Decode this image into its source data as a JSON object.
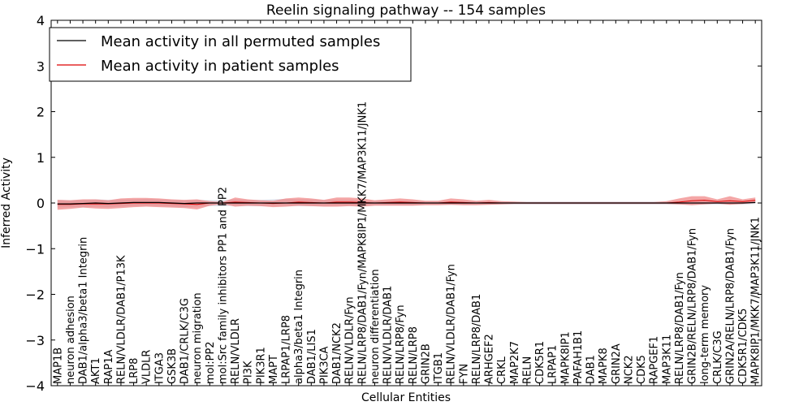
{
  "chart_data": {
    "type": "line",
    "title": "Reelin signaling pathway -- 154 samples",
    "xlabel": "Cellular Entities",
    "ylabel": "Inferred Activity",
    "ylim": [
      -4,
      4
    ],
    "yticks": [
      -4,
      -3,
      -2,
      -1,
      0,
      1,
      2,
      3,
      4
    ],
    "ytick_labels": [
      "−4",
      "−3",
      "−2",
      "−1",
      "0",
      "1",
      "2",
      "3",
      "4"
    ],
    "grid": false,
    "legend_position": "top-left",
    "categories": [
      "MAP1B",
      "neuron adhesion",
      "DAB1/alpha3/beta1 Integrin",
      "AKT1",
      "RAP1A",
      "RELN/VLDLR/DAB1/P13K",
      "LRP8",
      "VLDLR",
      "ITGA3",
      "GSK3B",
      "DAB1/CRLK/C3G",
      "neuron migration",
      "mol:PP2",
      "mol:Src family inhibitors PP1 and PP2",
      "RELN/VLDLR",
      "PI3K",
      "PIK3R1",
      "MAPT",
      "LRPAP1/LRP8",
      "alpha3/beta1 Integrin",
      "DAB1/LIS1",
      "PIK3CA",
      "DAB1/NCK2",
      "RELN/VLDLR/Fyn",
      "RELN/LRP8/DAB1/Fyn/MAPK8IP1/MKK7/MAP3K11/JNK1",
      "neuron differentiation",
      "RELN/VLDLR/DAB1",
      "RELN/LRP8/Fyn",
      "RELN/LRP8",
      "GRIN2B",
      "ITGB1",
      "RELN/VLDLR/DAB1/Fyn",
      "FYN",
      "RELN/LRP8/DAB1",
      "ARHGEF2",
      "CRKL",
      "MAP2K7",
      "RELN",
      "CDK5R1",
      "LRPAP1",
      "MAPK8IP1",
      "PAFAH1B1",
      "DAB1",
      "MAPK8",
      "GRIN2A",
      "NCK2",
      "CDK5",
      "RAPGEF1",
      "MAP3K11",
      "RELN/LRP8/DAB1/Fyn",
      "GRIN2B/RELN/LRP8/DAB1/Fyn",
      "long-term memory",
      "CRLK/C3G",
      "GRIN2A/RELN/LRP8/DAB1/Fyn",
      "CDK5R1/CDK5",
      "MAPK8IP1/MKK7/MAP3K11/JNK1"
    ],
    "series": [
      {
        "name": "Mean activity in all permuted samples",
        "color": "#000000",
        "values": [
          -0.02,
          -0.02,
          -0.01,
          0.0,
          -0.01,
          0.0,
          0.01,
          0.01,
          0.01,
          0.0,
          -0.01,
          0.0,
          0.0,
          0.0,
          0.0,
          0.0,
          0.0,
          0.0,
          0.0,
          0.0,
          0.0,
          0.0,
          0.0,
          0.0,
          0.0,
          0.0,
          0.0,
          0.0,
          0.0,
          0.0,
          0.0,
          0.0,
          0.0,
          0.0,
          0.0,
          0.0,
          0.0,
          0.0,
          0.0,
          0.0,
          0.0,
          0.0,
          0.0,
          0.0,
          0.0,
          0.0,
          0.0,
          0.0,
          0.0,
          0.0,
          0.0,
          0.0,
          0.0,
          0.0,
          0.0,
          0.01
        ],
        "band_upper": [
          0.07,
          0.06,
          0.07,
          0.08,
          0.07,
          0.08,
          0.08,
          0.09,
          0.08,
          0.07,
          0.06,
          0.07,
          0.06,
          0.06,
          0.08,
          0.07,
          0.07,
          0.08,
          0.09,
          0.08,
          0.08,
          0.07,
          0.07,
          0.07,
          0.06,
          0.05,
          0.05,
          0.05,
          0.05,
          0.04,
          0.04,
          0.04,
          0.04,
          0.04,
          0.03,
          0.03,
          0.03,
          0.03,
          0.03,
          0.03,
          0.03,
          0.03,
          0.03,
          0.03,
          0.03,
          0.03,
          0.03,
          0.03,
          0.03,
          0.04,
          0.05,
          0.05,
          0.05,
          0.04,
          0.04,
          0.04
        ],
        "band_lower": [
          -0.1,
          -0.09,
          -0.09,
          -0.08,
          -0.09,
          -0.08,
          -0.07,
          -0.06,
          -0.07,
          -0.08,
          -0.09,
          -0.08,
          -0.07,
          -0.07,
          -0.06,
          -0.07,
          -0.07,
          -0.06,
          -0.06,
          -0.07,
          -0.07,
          -0.07,
          -0.06,
          -0.06,
          -0.06,
          -0.05,
          -0.05,
          -0.05,
          -0.05,
          -0.04,
          -0.04,
          -0.04,
          -0.04,
          -0.04,
          -0.03,
          -0.03,
          -0.03,
          -0.03,
          -0.03,
          -0.03,
          -0.03,
          -0.03,
          -0.03,
          -0.03,
          -0.03,
          -0.03,
          -0.03,
          -0.03,
          -0.03,
          -0.03,
          -0.03,
          -0.03,
          -0.03,
          -0.03,
          -0.03,
          -0.02
        ]
      },
      {
        "name": "Mean activity in patient samples",
        "color": "#dd0000",
        "values": [
          -0.03,
          -0.03,
          -0.02,
          -0.02,
          -0.02,
          -0.01,
          0.0,
          0.0,
          0.0,
          -0.01,
          -0.02,
          -0.03,
          0.0,
          0.0,
          0.02,
          0.01,
          0.0,
          -0.01,
          0.0,
          0.02,
          0.01,
          0.0,
          0.02,
          0.02,
          0.01,
          0.0,
          0.01,
          0.02,
          0.01,
          0.0,
          0.0,
          0.02,
          0.01,
          0.0,
          0.01,
          0.0,
          0.0,
          0.0,
          0.0,
          0.0,
          0.0,
          0.0,
          0.0,
          0.0,
          0.0,
          0.0,
          0.0,
          0.0,
          0.0,
          0.02,
          0.05,
          0.06,
          0.03,
          0.05,
          0.03,
          0.06
        ],
        "band_upper": [
          0.07,
          0.06,
          0.08,
          0.08,
          0.06,
          0.1,
          0.11,
          0.11,
          0.1,
          0.08,
          0.07,
          0.08,
          0.04,
          0.02,
          0.12,
          0.08,
          0.06,
          0.05,
          0.1,
          0.12,
          0.1,
          0.07,
          0.12,
          0.12,
          0.1,
          0.06,
          0.08,
          0.1,
          0.08,
          0.05,
          0.05,
          0.1,
          0.08,
          0.05,
          0.07,
          0.04,
          0.03,
          0.02,
          0.02,
          0.02,
          0.02,
          0.02,
          0.02,
          0.02,
          0.02,
          0.02,
          0.02,
          0.02,
          0.04,
          0.1,
          0.15,
          0.15,
          0.08,
          0.15,
          0.08,
          0.12
        ],
        "band_lower": [
          -0.15,
          -0.13,
          -0.1,
          -0.12,
          -0.13,
          -0.11,
          -0.09,
          -0.08,
          -0.09,
          -0.1,
          -0.11,
          -0.14,
          -0.06,
          -0.02,
          -0.08,
          -0.06,
          -0.07,
          -0.09,
          -0.08,
          -0.06,
          -0.07,
          -0.08,
          -0.08,
          -0.07,
          -0.08,
          -0.06,
          -0.06,
          -0.06,
          -0.06,
          -0.05,
          -0.05,
          -0.04,
          -0.05,
          -0.05,
          -0.04,
          -0.03,
          -0.02,
          -0.02,
          -0.02,
          -0.02,
          -0.02,
          -0.02,
          -0.02,
          -0.02,
          -0.02,
          -0.02,
          -0.02,
          -0.02,
          -0.02,
          -0.03,
          -0.05,
          -0.03,
          -0.01,
          -0.04,
          -0.02,
          0.0
        ]
      }
    ]
  }
}
